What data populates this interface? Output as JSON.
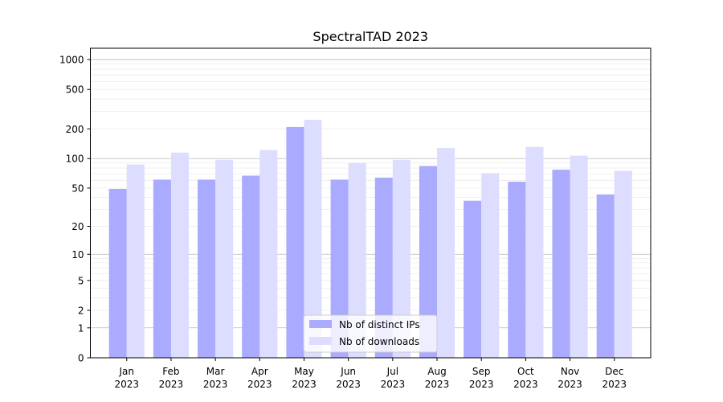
{
  "chart_data": {
    "type": "bar",
    "title": "SpectralTAD 2023",
    "xlabel": "",
    "ylabel": "",
    "y_scale": "log1p",
    "ylim": [
      0,
      1300
    ],
    "y_ticks": [
      0,
      1,
      2,
      5,
      10,
      20,
      50,
      100,
      200,
      500,
      1000
    ],
    "major_grid_values": [
      1,
      10,
      100,
      1000
    ],
    "grid": true,
    "legend_position": "bottom-center",
    "categories": [
      {
        "month": "Jan",
        "year": "2023"
      },
      {
        "month": "Feb",
        "year": "2023"
      },
      {
        "month": "Mar",
        "year": "2023"
      },
      {
        "month": "Apr",
        "year": "2023"
      },
      {
        "month": "May",
        "year": "2023"
      },
      {
        "month": "Jun",
        "year": "2023"
      },
      {
        "month": "Jul",
        "year": "2023"
      },
      {
        "month": "Aug",
        "year": "2023"
      },
      {
        "month": "Sep",
        "year": "2023"
      },
      {
        "month": "Oct",
        "year": "2023"
      },
      {
        "month": "Nov",
        "year": "2023"
      },
      {
        "month": "Dec",
        "year": "2023"
      }
    ],
    "series": [
      {
        "name": "Nb of distinct IPs",
        "color": "#aaaaff",
        "values": [
          49,
          61,
          61,
          67,
          209,
          61,
          64,
          84,
          37,
          58,
          77,
          43
        ]
      },
      {
        "name": "Nb of downloads",
        "color": "#ddddff",
        "values": [
          87,
          115,
          97,
          122,
          247,
          90,
          97,
          128,
          71,
          131,
          107,
          75
        ]
      }
    ]
  }
}
